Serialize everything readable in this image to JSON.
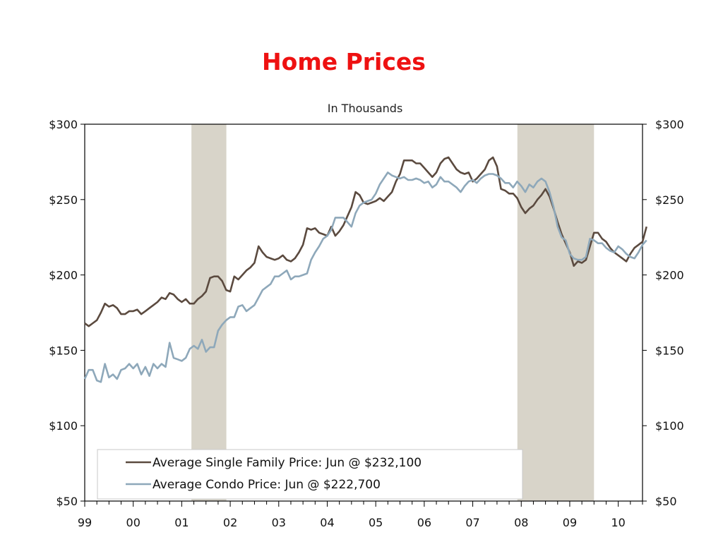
{
  "slide": {
    "title": "Home Prices"
  },
  "chart_data": {
    "type": "line",
    "title": "",
    "subtitle": "In Thousands",
    "xlabel": "",
    "ylabel": "",
    "x_start": 1999.0,
    "x_step": 0.0833333,
    "xlim": [
      1999.0,
      2010.5
    ],
    "ylim": [
      50,
      300
    ],
    "y_ticks": [
      50,
      100,
      150,
      200,
      250,
      300
    ],
    "y_tick_labels": [
      "$50",
      "$100",
      "$150",
      "$200",
      "$250",
      "$300"
    ],
    "x_ticks": [
      1999,
      2000,
      2001,
      2002,
      2003,
      2004,
      2005,
      2006,
      2007,
      2008,
      2009,
      2010
    ],
    "x_tick_labels": [
      "99",
      "00",
      "01",
      "02",
      "03",
      "04",
      "05",
      "06",
      "07",
      "08",
      "09",
      "10"
    ],
    "recessions": [
      {
        "start": 2001.2,
        "end": 2001.92
      },
      {
        "start": 2007.92,
        "end": 2009.5
      }
    ],
    "grid": false,
    "legend_position": "bottom-left",
    "series": [
      {
        "name": "Average Single Family Price: Jun @ $232,100",
        "color": "#5b4a3f",
        "values": [
          168,
          166,
          168,
          170,
          175,
          181,
          179,
          180,
          178,
          174,
          174,
          176,
          176,
          177,
          174,
          176,
          178,
          180,
          182,
          185,
          184,
          188,
          187,
          184,
          182,
          184,
          181,
          181,
          184,
          186,
          189,
          198,
          199,
          199,
          196,
          190,
          189,
          199,
          197,
          200,
          203,
          205,
          208,
          219,
          215,
          212,
          211,
          210,
          211,
          213,
          210,
          209,
          211,
          215,
          220,
          231,
          230,
          231,
          228,
          227,
          226,
          232,
          226,
          229,
          233,
          239,
          245,
          255,
          253,
          248,
          247,
          248,
          249,
          251,
          249,
          252,
          255,
          262,
          267,
          276,
          276,
          276,
          274,
          274,
          271,
          268,
          265,
          268,
          274,
          277,
          278,
          274,
          270,
          268,
          267,
          268,
          262,
          264,
          267,
          270,
          276,
          278,
          272,
          257,
          256,
          254,
          254,
          251,
          245,
          241,
          244,
          246,
          250,
          253,
          257,
          252,
          244,
          235,
          227,
          221,
          215,
          206,
          209,
          208,
          210,
          219,
          228,
          228,
          224,
          222,
          218,
          215,
          213,
          211,
          209,
          214,
          218,
          220,
          222,
          232
        ],
        "end_label": ""
      },
      {
        "name": "Average Condo Price: Jun @ $222,700",
        "color": "#8ea8ba",
        "values": [
          131,
          137,
          137,
          130,
          129,
          141,
          132,
          134,
          131,
          137,
          138,
          141,
          138,
          141,
          134,
          139,
          133,
          141,
          138,
          141,
          139,
          155,
          145,
          144,
          143,
          145,
          151,
          153,
          151,
          157,
          149,
          152,
          152,
          163,
          167,
          170,
          172,
          172,
          179,
          180,
          176,
          178,
          180,
          185,
          190,
          192,
          194,
          199,
          199,
          201,
          203,
          197,
          199,
          199,
          200,
          201,
          210,
          215,
          219,
          224,
          226,
          230,
          238,
          238,
          238,
          235,
          232,
          241,
          246,
          248,
          249,
          250,
          254,
          260,
          264,
          268,
          266,
          265,
          264,
          265,
          263,
          263,
          264,
          263,
          261,
          262,
          258,
          260,
          265,
          262,
          262,
          260,
          258,
          255,
          259,
          262,
          263,
          261,
          264,
          266,
          267,
          267,
          266,
          264,
          261,
          261,
          258,
          262,
          259,
          255,
          260,
          258,
          262,
          264,
          262,
          255,
          245,
          232,
          225,
          223,
          214,
          211,
          210,
          210,
          212,
          224,
          223,
          221,
          221,
          218,
          216,
          215,
          219,
          217,
          214,
          212,
          211,
          215,
          220,
          223
        ],
        "end_label": ""
      }
    ]
  }
}
